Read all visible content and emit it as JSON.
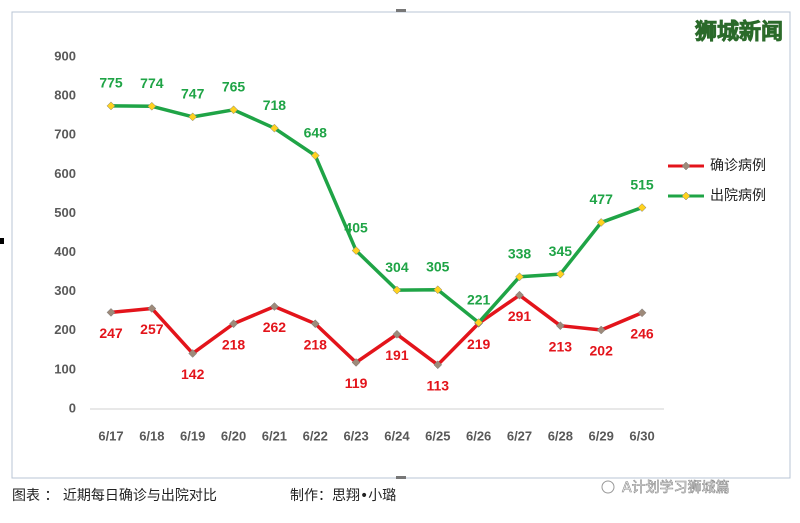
{
  "watermark": "狮城新闻",
  "caption": {
    "title": "图表 ： 近期每日确诊与出院对比",
    "credit": "制作：思翔•小璐"
  },
  "brand": "A计划学习狮城篇",
  "chart_data": {
    "type": "line",
    "categories": [
      "6/17",
      "6/18",
      "6/19",
      "6/20",
      "6/21",
      "6/22",
      "6/23",
      "6/24",
      "6/25",
      "6/26",
      "6/27",
      "6/28",
      "6/29",
      "6/30"
    ],
    "series": [
      {
        "name": "确诊病例",
        "color": "#e3141b",
        "marker_color": "#9e8a7a",
        "label_position": "below",
        "values": [
          247,
          257,
          142,
          218,
          262,
          218,
          119,
          191,
          113,
          219,
          291,
          213,
          202,
          246
        ]
      },
      {
        "name": "出院病例",
        "color": "#1fa446",
        "marker_color": "#ffd21f",
        "label_position": "above",
        "values": [
          775,
          774,
          747,
          765,
          718,
          648,
          405,
          304,
          305,
          221,
          338,
          345,
          477,
          515
        ]
      }
    ],
    "ylim": [
      0,
      900
    ],
    "yticks": [
      0,
      100,
      200,
      300,
      400,
      500,
      600,
      700,
      800,
      900
    ],
    "grid": false,
    "legend": "right"
  }
}
